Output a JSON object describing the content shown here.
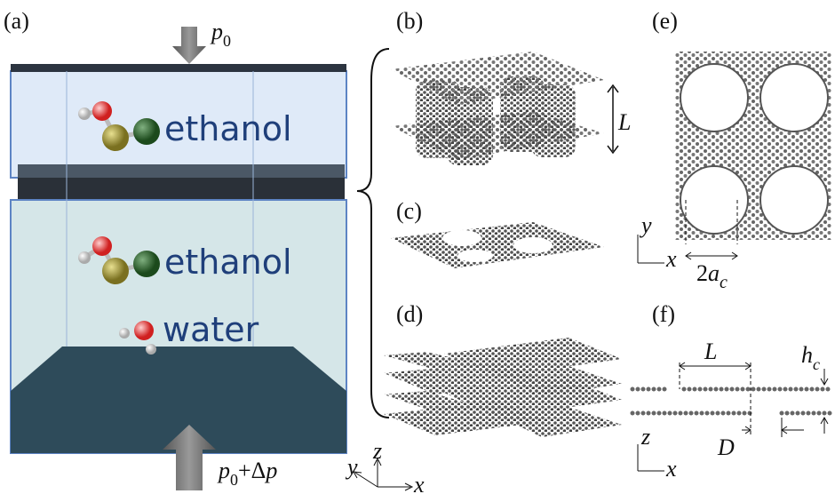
{
  "panels": {
    "a": {
      "label": "(a)",
      "top_pressure": {
        "symbol": "p",
        "subscript": "0"
      },
      "upper_molecules": [
        "ethanol"
      ],
      "lower_molecules": [
        "ethanol",
        "water"
      ],
      "bottom_pressure": {
        "symbol": "p",
        "subscript": "0",
        "suffix": "+Δ",
        "suffix_symbol": "p"
      }
    },
    "b": {
      "label": "(b)",
      "dimension": "L"
    },
    "c": {
      "label": "(c)"
    },
    "d": {
      "label": "(d)"
    },
    "e": {
      "label": "(e)",
      "axes": [
        "y",
        "x"
      ],
      "dimension": {
        "prefix": "2",
        "symbol": "a",
        "subscript": "c"
      }
    },
    "f": {
      "label": "(f)",
      "length": "L",
      "thickness": {
        "symbol": "h",
        "subscript": "c"
      },
      "spacing": "D",
      "axes": [
        "z",
        "x"
      ]
    }
  },
  "axes_3d": [
    "z",
    "y",
    "x"
  ]
}
